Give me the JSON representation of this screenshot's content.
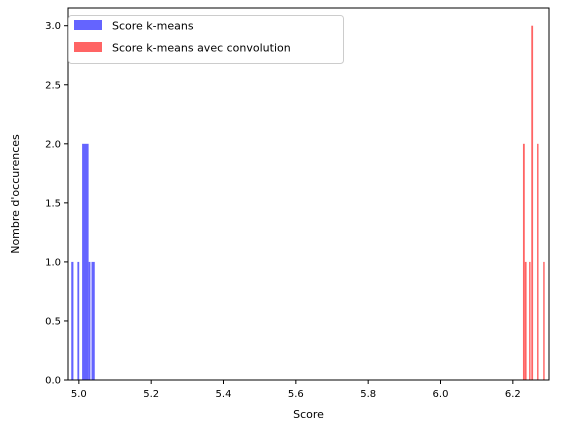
{
  "chart_data": {
    "type": "bar",
    "title": "",
    "xlabel": "Score",
    "ylabel": "Nombre d'occurences",
    "xlim": [
      4.97,
      6.3
    ],
    "ylim": [
      0,
      3.15
    ],
    "xticks": [
      "5.0",
      "5.2",
      "5.4",
      "5.6",
      "5.8",
      "6.0",
      "6.2"
    ],
    "xtick_values": [
      5.0,
      5.2,
      5.4,
      5.6,
      5.8,
      6.0,
      6.2
    ],
    "yticks": [
      "0.0",
      "0.5",
      "1.0",
      "1.5",
      "2.0",
      "2.5",
      "3.0"
    ],
    "ytick_values": [
      0,
      0.5,
      1.0,
      1.5,
      2.0,
      2.5,
      3.0
    ],
    "grid": false,
    "legend_position": "upper-left",
    "series": [
      {
        "name": "Score k-means",
        "color": "#6464ff",
        "bins": [
          {
            "x0": 4.979,
            "x1": 4.985,
            "count": 1
          },
          {
            "x0": 4.996,
            "x1": 5.001,
            "count": 1
          },
          {
            "x0": 5.009,
            "x1": 5.027,
            "count": 2
          },
          {
            "x0": 5.027,
            "x1": 5.032,
            "count": 1
          },
          {
            "x0": 5.035,
            "x1": 5.044,
            "count": 1
          }
        ]
      },
      {
        "name": "Score k-means avec convolution",
        "color": "#ff6464",
        "bins": [
          {
            "x0": 6.228,
            "x1": 6.233,
            "count": 2
          },
          {
            "x0": 6.233,
            "x1": 6.238,
            "count": 1
          },
          {
            "x0": 6.245,
            "x1": 6.249,
            "count": 1
          },
          {
            "x0": 6.251,
            "x1": 6.256,
            "count": 3
          },
          {
            "x0": 6.267,
            "x1": 6.271,
            "count": 2
          },
          {
            "x0": 6.284,
            "x1": 6.288,
            "count": 1
          }
        ]
      }
    ]
  }
}
